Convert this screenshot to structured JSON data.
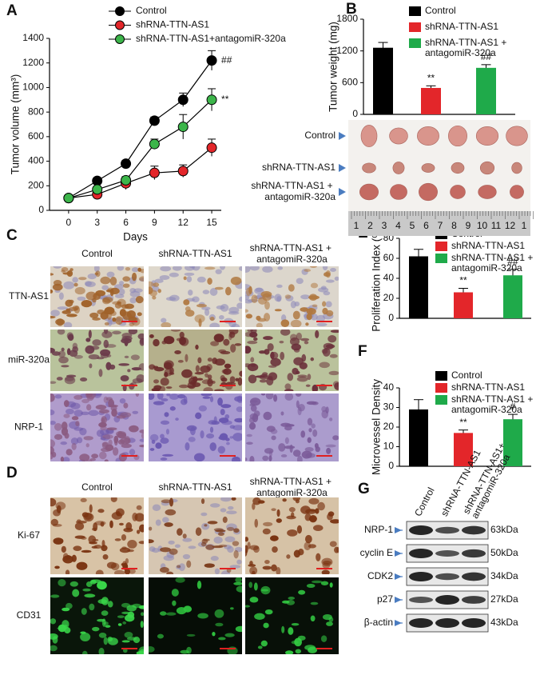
{
  "chart_data": [
    {
      "type": "line",
      "panel_label": "A",
      "xlabel": "Days",
      "ylabel": "Tumor volume (mm³)",
      "x": [
        0,
        3,
        6,
        9,
        12,
        15
      ],
      "xlim": [
        -2,
        16
      ],
      "xticks": [
        0,
        3,
        6,
        9,
        12,
        15
      ],
      "ylim": [
        0,
        1400
      ],
      "yticks": [
        0,
        200,
        400,
        600,
        800,
        1000,
        1200,
        1400
      ],
      "series": [
        {
          "name": "Control",
          "color": "#000000",
          "values": [
            100,
            240,
            380,
            730,
            900,
            1220
          ],
          "errors": [
            10,
            20,
            25,
            30,
            55,
            80
          ],
          "annotation": "##"
        },
        {
          "name": "shRNA-TTN-AS1",
          "color": "#e3262a",
          "values": [
            100,
            130,
            220,
            305,
            320,
            510
          ],
          "errors": [
            10,
            20,
            50,
            55,
            50,
            70
          ]
        },
        {
          "name": "shRNA-TTN-AS1+antagomiR-320a",
          "color": "#3cb54a",
          "values": [
            100,
            170,
            245,
            540,
            680,
            900
          ],
          "errors": [
            10,
            20,
            30,
            40,
            100,
            90
          ],
          "annotation": "**"
        }
      ]
    },
    {
      "type": "bar",
      "panel_label": "B",
      "ylabel": "Tumor weight (mg)",
      "categories": [
        null
      ],
      "ylim": [
        0,
        1800
      ],
      "yticks": [
        0,
        600,
        1200,
        1800
      ],
      "series": [
        {
          "name": "Control",
          "color": "#000000",
          "values": [
            1260
          ],
          "errors": [
            100
          ]
        },
        {
          "name": "shRNA-TTN-AS1",
          "color": "#e3262a",
          "values": [
            500
          ],
          "errors": [
            40
          ],
          "annotation": "**"
        },
        {
          "name": "shRNA-TTN-AS1 + antagomiR-320a",
          "color": "#1faa4a",
          "values": [
            880
          ],
          "errors": [
            60
          ],
          "annotation": "##"
        }
      ]
    },
    {
      "type": "bar",
      "panel_label": "E",
      "ylabel": "Proliferation Index (%)",
      "categories": [
        null
      ],
      "ylim": [
        0,
        80
      ],
      "yticks": [
        0,
        20,
        40,
        60,
        80
      ],
      "series": [
        {
          "name": "Control",
          "color": "#000000",
          "values": [
            62
          ],
          "errors": [
            7
          ]
        },
        {
          "name": "shRNA-TTN-AS1",
          "color": "#e3262a",
          "values": [
            26
          ],
          "errors": [
            4
          ],
          "annotation": "**"
        },
        {
          "name": "shRNA-TTN-AS1 + antagomiR-320a",
          "color": "#1faa4a",
          "values": [
            43
          ],
          "errors": [
            6
          ],
          "annotation": "##"
        }
      ]
    },
    {
      "type": "bar",
      "panel_label": "F",
      "ylabel": "Microvessel Density",
      "categories": [
        null
      ],
      "ylim": [
        0,
        40
      ],
      "yticks": [
        0,
        10,
        20,
        30,
        40
      ],
      "series": [
        {
          "name": "Control",
          "color": "#000000",
          "values": [
            29
          ],
          "errors": [
            5
          ]
        },
        {
          "name": "shRNA-TTN-AS1",
          "color": "#e3262a",
          "values": [
            17
          ],
          "errors": [
            1.5
          ],
          "annotation": "**"
        },
        {
          "name": "shRNA-TTN-AS1 + antagomiR-320a",
          "color": "#1faa4a",
          "values": [
            24
          ],
          "errors": [
            2.5
          ],
          "annotation": "#"
        }
      ]
    }
  ],
  "photo_b": {
    "row_labels": [
      "Control",
      "shRNA-TTN-AS1",
      "shRNA-TTN-AS1 + antagomiR-320a"
    ],
    "ruler": [
      1,
      2,
      3,
      4,
      5,
      6,
      7,
      8,
      9,
      10,
      11,
      12,
      1
    ]
  },
  "panel_c": {
    "label": "C",
    "columns": [
      "Control",
      "shRNA-TTN-AS1",
      "shRNA-TTN-AS1 + antagomiR-320a"
    ],
    "rows": [
      "TTN-AS1",
      "miR-320a",
      "NRP-1"
    ]
  },
  "panel_d": {
    "label": "D",
    "columns": [
      "Control",
      "shRNA-TTN-AS1",
      "shRNA-TTN-AS1 + antagomiR-320a"
    ],
    "rows": [
      "Ki-67",
      "CD31"
    ]
  },
  "panel_g": {
    "label": "G",
    "columns": [
      "Control",
      "shRNA-TTN-AS1",
      "shRNA-TTN-AS1+ antagomiR-320a"
    ],
    "rows": [
      {
        "protein": "NRP-1",
        "size": "63kDa"
      },
      {
        "protein": "cyclin E",
        "size": "50kDa"
      },
      {
        "protein": "CDK2",
        "size": "34kDa"
      },
      {
        "protein": "p27",
        "size": "27kDa"
      },
      {
        "protein": "β-actin",
        "size": "43kDa"
      }
    ]
  }
}
